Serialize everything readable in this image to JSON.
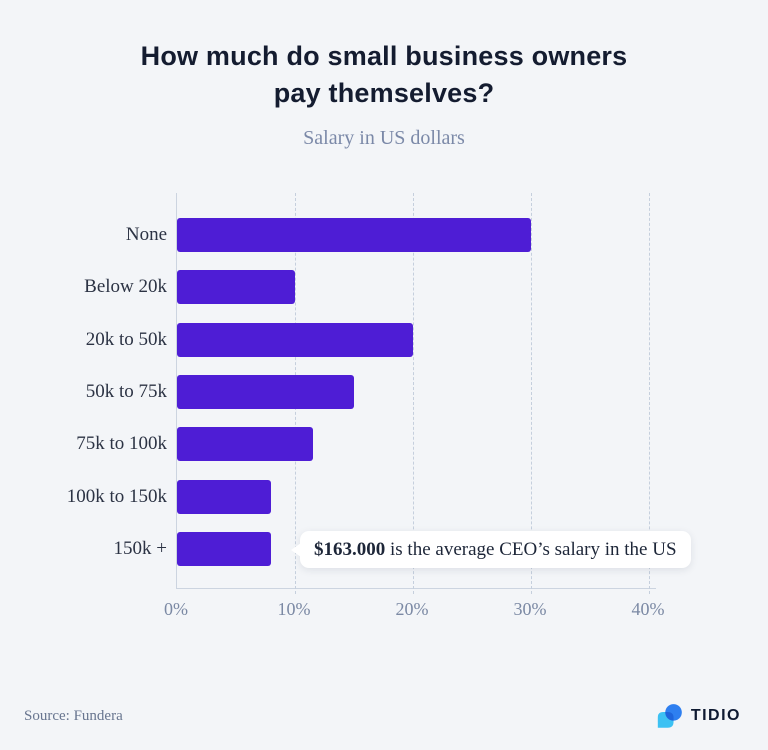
{
  "page": {
    "title": "How much do small business owners pay themselves?",
    "subtitle": "Salary in US dollars",
    "source": "Source: Fundera"
  },
  "brand": {
    "name": "TIDIO",
    "logo_colors": {
      "light_blue": "#3cc1f3",
      "blue": "#2e7ff0",
      "overlap": "#1e65dc"
    }
  },
  "annotation": {
    "value": "$163.000",
    "text": " is the average CEO’s salary in the US"
  },
  "chart_data": {
    "type": "bar",
    "orientation": "horizontal",
    "title": "How much do small business owners pay themselves?",
    "subtitle": "Salary in US dollars",
    "categories": [
      "None",
      "Below 20k",
      "20k to 50k",
      "50k to 75k",
      "75k to 100k",
      "100k to 150k",
      "150k +"
    ],
    "values": [
      30,
      10,
      20,
      15,
      11.5,
      8,
      8
    ],
    "unit": "percent of small business owners",
    "x_ticks": [
      {
        "value": 0,
        "label": "0%"
      },
      {
        "value": 10,
        "label": "10%"
      },
      {
        "value": 20,
        "label": "20%"
      },
      {
        "value": 30,
        "label": "30%"
      },
      {
        "value": 40,
        "label": "40%"
      }
    ],
    "xlim": [
      0,
      40.6
    ],
    "grid": "vertical-dashed",
    "legend": "none",
    "bar_color": "#4e1dd5",
    "annotation": {
      "target_category": "150k +",
      "value": "$163.000",
      "text": " is the average CEO’s salary in the US"
    }
  },
  "colors": {
    "background": "#f3f5f8",
    "bar": "#4e1dd5",
    "title_text": "#141c30",
    "subtitle_text": "#7b89a8",
    "label_text": "#2c3344",
    "axis_text": "#7b89a4",
    "gridline": "#c5cfdd",
    "axis_line": "#ccd4e0",
    "tooltip_bg": "#ffffff",
    "tooltip_text": "#1d2638",
    "source_text": "#68758f"
  }
}
